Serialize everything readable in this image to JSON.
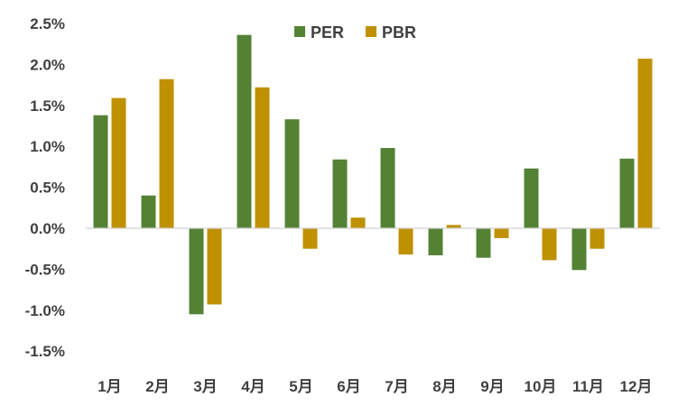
{
  "chart_data": {
    "type": "bar",
    "categories": [
      "1月",
      "2月",
      "3月",
      "4月",
      "5月",
      "6月",
      "7月",
      "8月",
      "9月",
      "10月",
      "11月",
      "12月"
    ],
    "series": [
      {
        "name": "PER",
        "color": "#548235",
        "values": [
          1.38,
          0.4,
          -1.05,
          2.36,
          1.33,
          0.84,
          0.98,
          -0.33,
          -0.36,
          0.73,
          -0.51,
          0.85
        ]
      },
      {
        "name": "PBR",
        "color": "#BF9000",
        "values": [
          1.59,
          1.82,
          -0.93,
          1.72,
          -0.25,
          0.13,
          -0.32,
          0.04,
          -0.12,
          -0.39,
          -0.25,
          2.07
        ]
      }
    ],
    "y_ticks": [
      2.5,
      2.0,
      1.5,
      1.0,
      0.5,
      0.0,
      -0.5,
      -1.0,
      -1.5
    ],
    "y_tick_labels": [
      "2.5%",
      "2.0%",
      "1.5%",
      "1.0%",
      "0.5%",
      "0.0%",
      "-0.5%",
      "-1.0%",
      "-1.5%"
    ],
    "ylim": [
      -1.5,
      2.5
    ],
    "grid": false,
    "legend_position": "top-center",
    "title": "",
    "xlabel": "",
    "ylabel": ""
  }
}
